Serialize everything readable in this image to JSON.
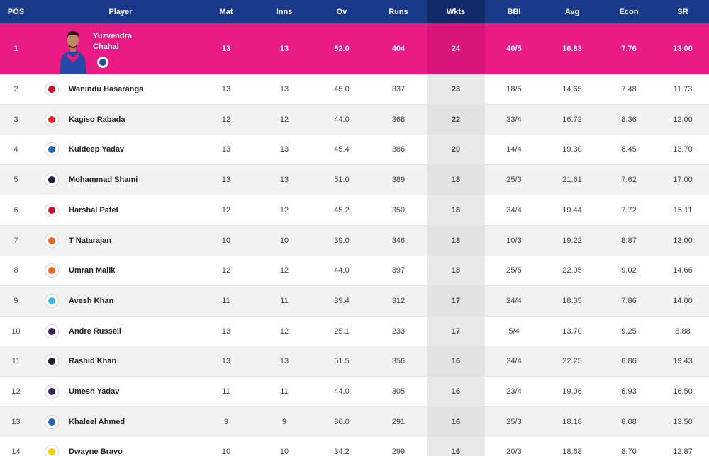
{
  "headers": {
    "pos": "POS",
    "player": "Player",
    "mat": "Mat",
    "inns": "Inns",
    "ov": "Ov",
    "runs": "Runs",
    "wkts": "Wkts",
    "bbi": "BBI",
    "avg": "Avg",
    "econ": "Econ",
    "sr": "SR"
  },
  "leader": {
    "pos": "1",
    "name": "Yuzvendra Chahal",
    "team_icon": "rr-logo-icon",
    "team_color": "#254aa5",
    "mat": "13",
    "inns": "13",
    "ov": "52.0",
    "runs": "404",
    "wkts": "24",
    "bbi": "40/5",
    "avg": "16.83",
    "econ": "7.76",
    "sr": "13.00"
  },
  "rows": [
    {
      "pos": "2",
      "name": "Wanindu Hasaranga",
      "team": "rcb",
      "team_color": "#c8102e",
      "mat": "13",
      "inns": "13",
      "ov": "45.0",
      "runs": "337",
      "wkts": "23",
      "bbi": "18/5",
      "avg": "14.65",
      "econ": "7.48",
      "sr": "11.73"
    },
    {
      "pos": "3",
      "name": "Kagiso Rabada",
      "team": "pbks",
      "team_color": "#e31b23",
      "mat": "12",
      "inns": "12",
      "ov": "44.0",
      "runs": "368",
      "wkts": "22",
      "bbi": "33/4",
      "avg": "16.72",
      "econ": "8.36",
      "sr": "12.00"
    },
    {
      "pos": "4",
      "name": "Kuldeep Yadav",
      "team": "dc",
      "team_color": "#2561ae",
      "mat": "13",
      "inns": "13",
      "ov": "45.4",
      "runs": "386",
      "wkts": "20",
      "bbi": "14/4",
      "avg": "19.30",
      "econ": "8.45",
      "sr": "13.70"
    },
    {
      "pos": "5",
      "name": "Mohammad Shami",
      "team": "gt",
      "team_color": "#1b2133",
      "mat": "13",
      "inns": "13",
      "ov": "51.0",
      "runs": "389",
      "wkts": "18",
      "bbi": "25/3",
      "avg": "21.61",
      "econ": "7.62",
      "sr": "17.00"
    },
    {
      "pos": "6",
      "name": "Harshal Patel",
      "team": "rcb",
      "team_color": "#c8102e",
      "mat": "12",
      "inns": "12",
      "ov": "45.2",
      "runs": "350",
      "wkts": "18",
      "bbi": "34/4",
      "avg": "19.44",
      "econ": "7.72",
      "sr": "15.11"
    },
    {
      "pos": "7",
      "name": "T Natarajan",
      "team": "srh",
      "team_color": "#f26522",
      "mat": "10",
      "inns": "10",
      "ov": "39.0",
      "runs": "346",
      "wkts": "18",
      "bbi": "10/3",
      "avg": "19.22",
      "econ": "8.87",
      "sr": "13.00"
    },
    {
      "pos": "8",
      "name": "Umran Malik",
      "team": "srh",
      "team_color": "#f26522",
      "mat": "12",
      "inns": "12",
      "ov": "44.0",
      "runs": "397",
      "wkts": "18",
      "bbi": "25/5",
      "avg": "22.05",
      "econ": "9.02",
      "sr": "14.66"
    },
    {
      "pos": "9",
      "name": "Avesh Khan",
      "team": "lsg",
      "team_color": "#3fb8e0",
      "mat": "11",
      "inns": "11",
      "ov": "39.4",
      "runs": "312",
      "wkts": "17",
      "bbi": "24/4",
      "avg": "18.35",
      "econ": "7.86",
      "sr": "14.00"
    },
    {
      "pos": "10",
      "name": "Andre Russell",
      "team": "kkr",
      "team_color": "#3a225d",
      "mat": "13",
      "inns": "12",
      "ov": "25.1",
      "runs": "233",
      "wkts": "17",
      "bbi": "5/4",
      "avg": "13.70",
      "econ": "9.25",
      "sr": "8.88"
    },
    {
      "pos": "11",
      "name": "Rashid Khan",
      "team": "gt",
      "team_color": "#1b2133",
      "mat": "13",
      "inns": "13",
      "ov": "51.5",
      "runs": "356",
      "wkts": "16",
      "bbi": "24/4",
      "avg": "22.25",
      "econ": "6.86",
      "sr": "19.43"
    },
    {
      "pos": "12",
      "name": "Umesh Yadav",
      "team": "kkr",
      "team_color": "#3a225d",
      "mat": "11",
      "inns": "11",
      "ov": "44.0",
      "runs": "305",
      "wkts": "16",
      "bbi": "23/4",
      "avg": "19.06",
      "econ": "6.93",
      "sr": "16.50"
    },
    {
      "pos": "13",
      "name": "Khaleel Ahmed",
      "team": "dc",
      "team_color": "#2561ae",
      "mat": "9",
      "inns": "9",
      "ov": "36.0",
      "runs": "291",
      "wkts": "16",
      "bbi": "25/3",
      "avg": "18.18",
      "econ": "8.08",
      "sr": "13.50"
    },
    {
      "pos": "14",
      "name": "Dwayne Bravo",
      "team": "csk",
      "team_color": "#f9cd05",
      "mat": "10",
      "inns": "10",
      "ov": "34.2",
      "runs": "299",
      "wkts": "16",
      "bbi": "20/3",
      "avg": "18.68",
      "econ": "8.70",
      "sr": "12.87"
    }
  ]
}
